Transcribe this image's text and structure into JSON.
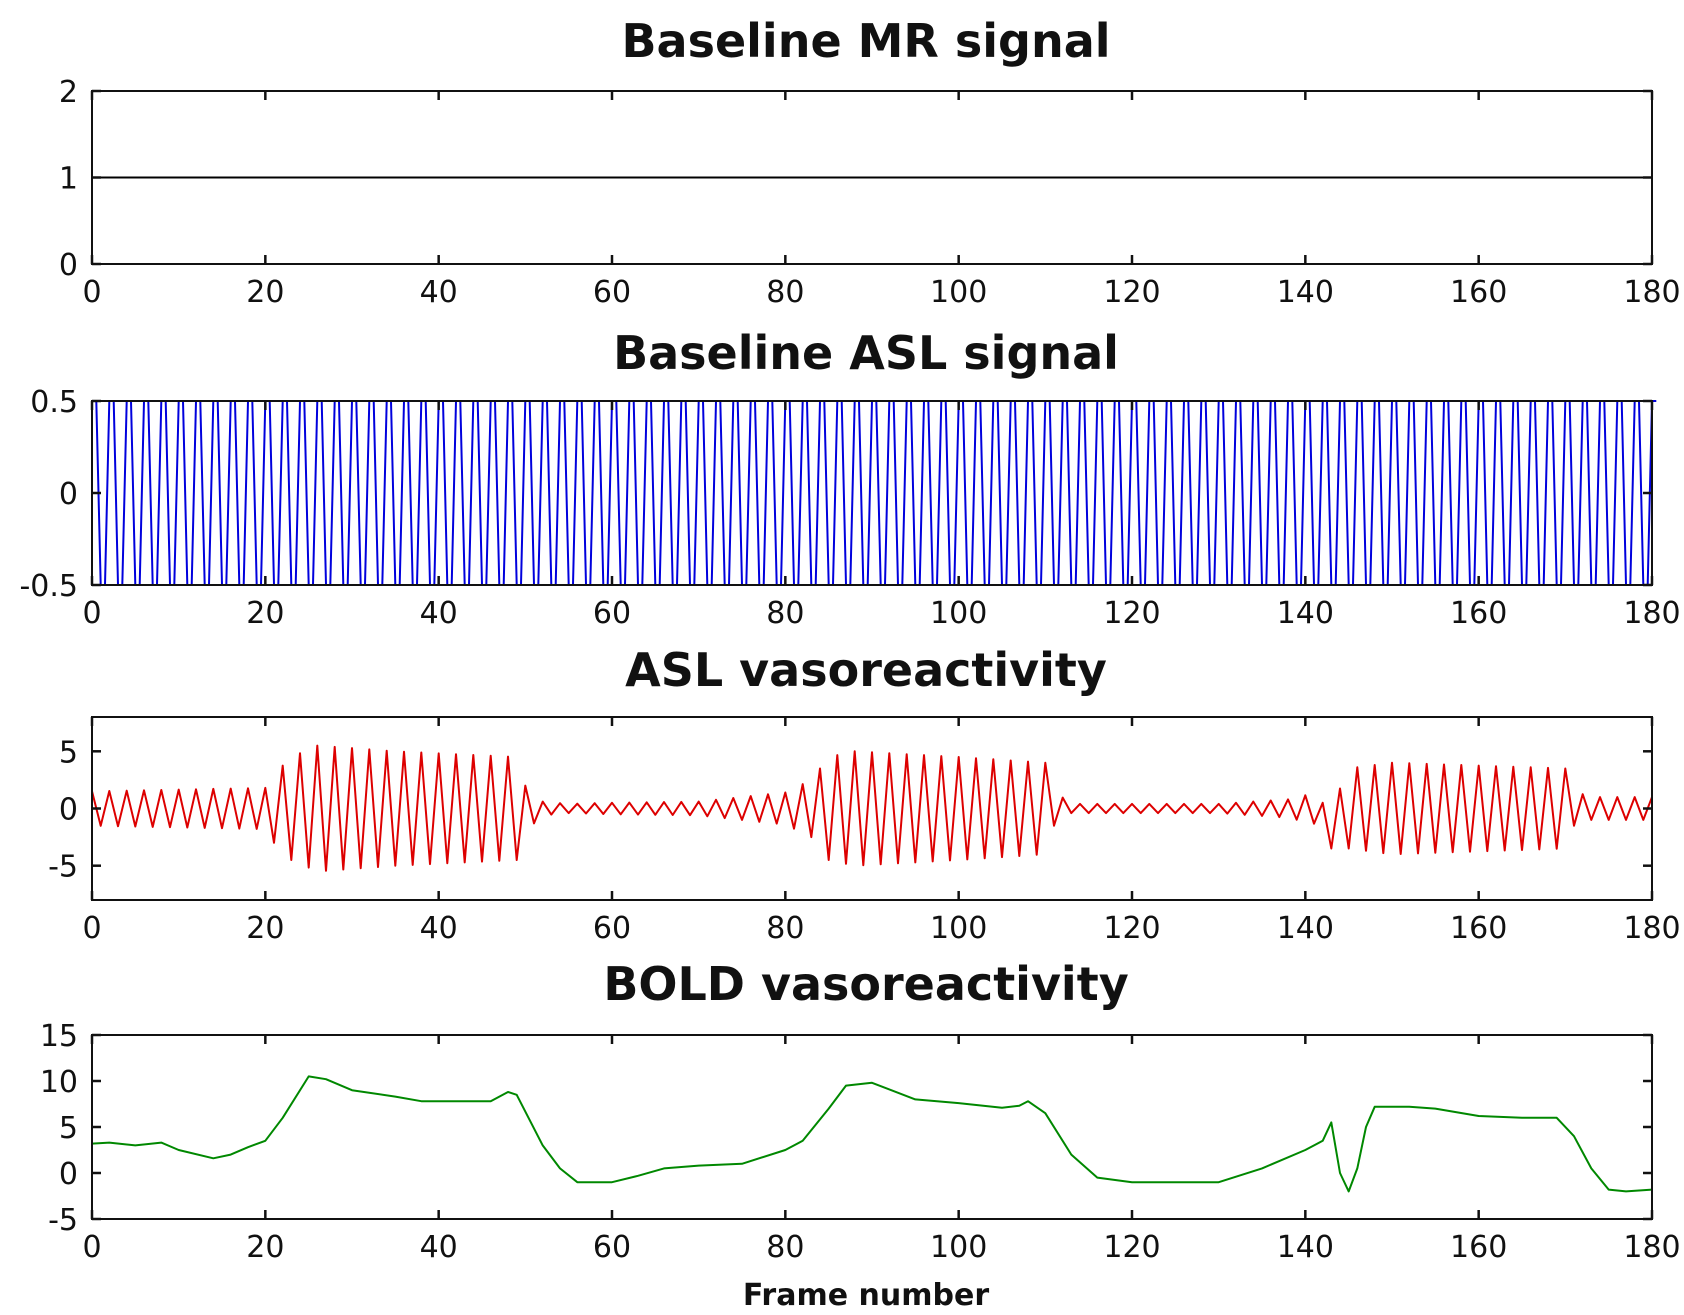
{
  "chart_data": [
    {
      "type": "line",
      "title": "Baseline MR signal",
      "xlabel": "",
      "ylabel": "",
      "xlim": [
        0,
        180
      ],
      "ylim": [
        0,
        2
      ],
      "xticks": [
        "0",
        "20",
        "40",
        "60",
        "80",
        "100",
        "120",
        "140",
        "160",
        "180"
      ],
      "yticks": [
        "0",
        "1",
        "2"
      ],
      "grid": false,
      "series": [
        {
          "color": "#000000",
          "x": [
            0,
            180
          ],
          "y": [
            1,
            1
          ]
        }
      ]
    },
    {
      "type": "line",
      "title": "Baseline ASL signal",
      "xlabel": "",
      "ylabel": "",
      "xlim": [
        0,
        180
      ],
      "ylim": [
        -0.5,
        0.5
      ],
      "xticks": [
        "0",
        "20",
        "40",
        "60",
        "80",
        "100",
        "120",
        "140",
        "160",
        "180"
      ],
      "yticks": [
        "-0.5",
        "0",
        "0.5"
      ],
      "grid": false,
      "series": [
        {
          "color": "#0000dd",
          "description": "alternating ±0.5 every frame, frames 0–180",
          "x_start": 0,
          "x_end": 180,
          "amplitude": 0.5
        }
      ]
    },
    {
      "type": "line",
      "title": "ASL vasoreactivity",
      "xlabel": "",
      "ylabel": "",
      "xlim": [
        0,
        180
      ],
      "ylim": [
        -8,
        8
      ],
      "xticks": [
        "0",
        "20",
        "40",
        "60",
        "80",
        "100",
        "120",
        "140",
        "160",
        "180"
      ],
      "yticks": [
        "-5",
        "0",
        "5"
      ],
      "grid": false,
      "series": [
        {
          "color": "#dd0000",
          "envelope_x": [
            0,
            20,
            21,
            23,
            26,
            35,
            49,
            50,
            52,
            55,
            60,
            70,
            80,
            83,
            85,
            88,
            100,
            110,
            111,
            113,
            120,
            130,
            138,
            142,
            143,
            145,
            150,
            170,
            171,
            173,
            180
          ],
          "envelope_amp": [
            1.5,
            1.8,
            3.0,
            4.5,
            5.5,
            5.0,
            4.5,
            2.0,
            0.6,
            0.4,
            0.5,
            0.6,
            1.4,
            2.5,
            4.5,
            5.0,
            4.5,
            4.0,
            1.5,
            0.4,
            0.4,
            0.4,
            0.8,
            1.5,
            2.0,
            3.5,
            4.0,
            3.5,
            1.5,
            1.0,
            1.0
          ],
          "offset_x": [
            0,
            141,
            142,
            143,
            144,
            145,
            180
          ],
          "offset_y": [
            0,
            0,
            -1,
            -1.5,
            -1,
            0,
            0
          ]
        }
      ]
    },
    {
      "type": "line",
      "title": "BOLD vasoreactivity",
      "xlabel": "Frame number",
      "ylabel": "",
      "xlim": [
        0,
        180
      ],
      "ylim": [
        -5,
        15
      ],
      "xticks": [
        "0",
        "20",
        "40",
        "60",
        "80",
        "100",
        "120",
        "140",
        "160",
        "180"
      ],
      "yticks": [
        "-5",
        "0",
        "5",
        "10",
        "15"
      ],
      "grid": false,
      "series": [
        {
          "color": "#008800",
          "x": [
            0,
            2,
            5,
            8,
            10,
            14,
            16,
            18,
            20,
            22,
            25,
            27,
            30,
            35,
            38,
            42,
            46,
            48,
            49,
            52,
            54,
            56,
            60,
            63,
            66,
            70,
            75,
            80,
            82,
            85,
            87,
            90,
            95,
            100,
            105,
            107,
            108,
            110,
            113,
            116,
            120,
            125,
            130,
            135,
            140,
            142,
            143,
            144,
            145,
            146,
            147,
            148,
            152,
            155,
            160,
            165,
            169,
            171,
            173,
            175,
            177,
            180
          ],
          "y": [
            3.2,
            3.3,
            3.0,
            3.3,
            2.5,
            1.6,
            2.0,
            2.8,
            3.5,
            6.0,
            10.5,
            10.2,
            9.0,
            8.3,
            7.8,
            7.8,
            7.8,
            8.8,
            8.5,
            3.0,
            0.5,
            -1.0,
            -1.0,
            -0.3,
            0.5,
            0.8,
            1.0,
            2.5,
            3.5,
            7.0,
            9.5,
            9.8,
            8.0,
            7.6,
            7.1,
            7.3,
            7.8,
            6.5,
            2.0,
            -0.5,
            -1.0,
            -1.0,
            -1.0,
            0.5,
            2.5,
            3.5,
            5.5,
            0.0,
            -2.0,
            0.5,
            5.0,
            7.2,
            7.2,
            7.0,
            6.2,
            6.0,
            6.0,
            4.0,
            0.5,
            -1.8,
            -2.0,
            -1.8
          ]
        }
      ]
    }
  ]
}
